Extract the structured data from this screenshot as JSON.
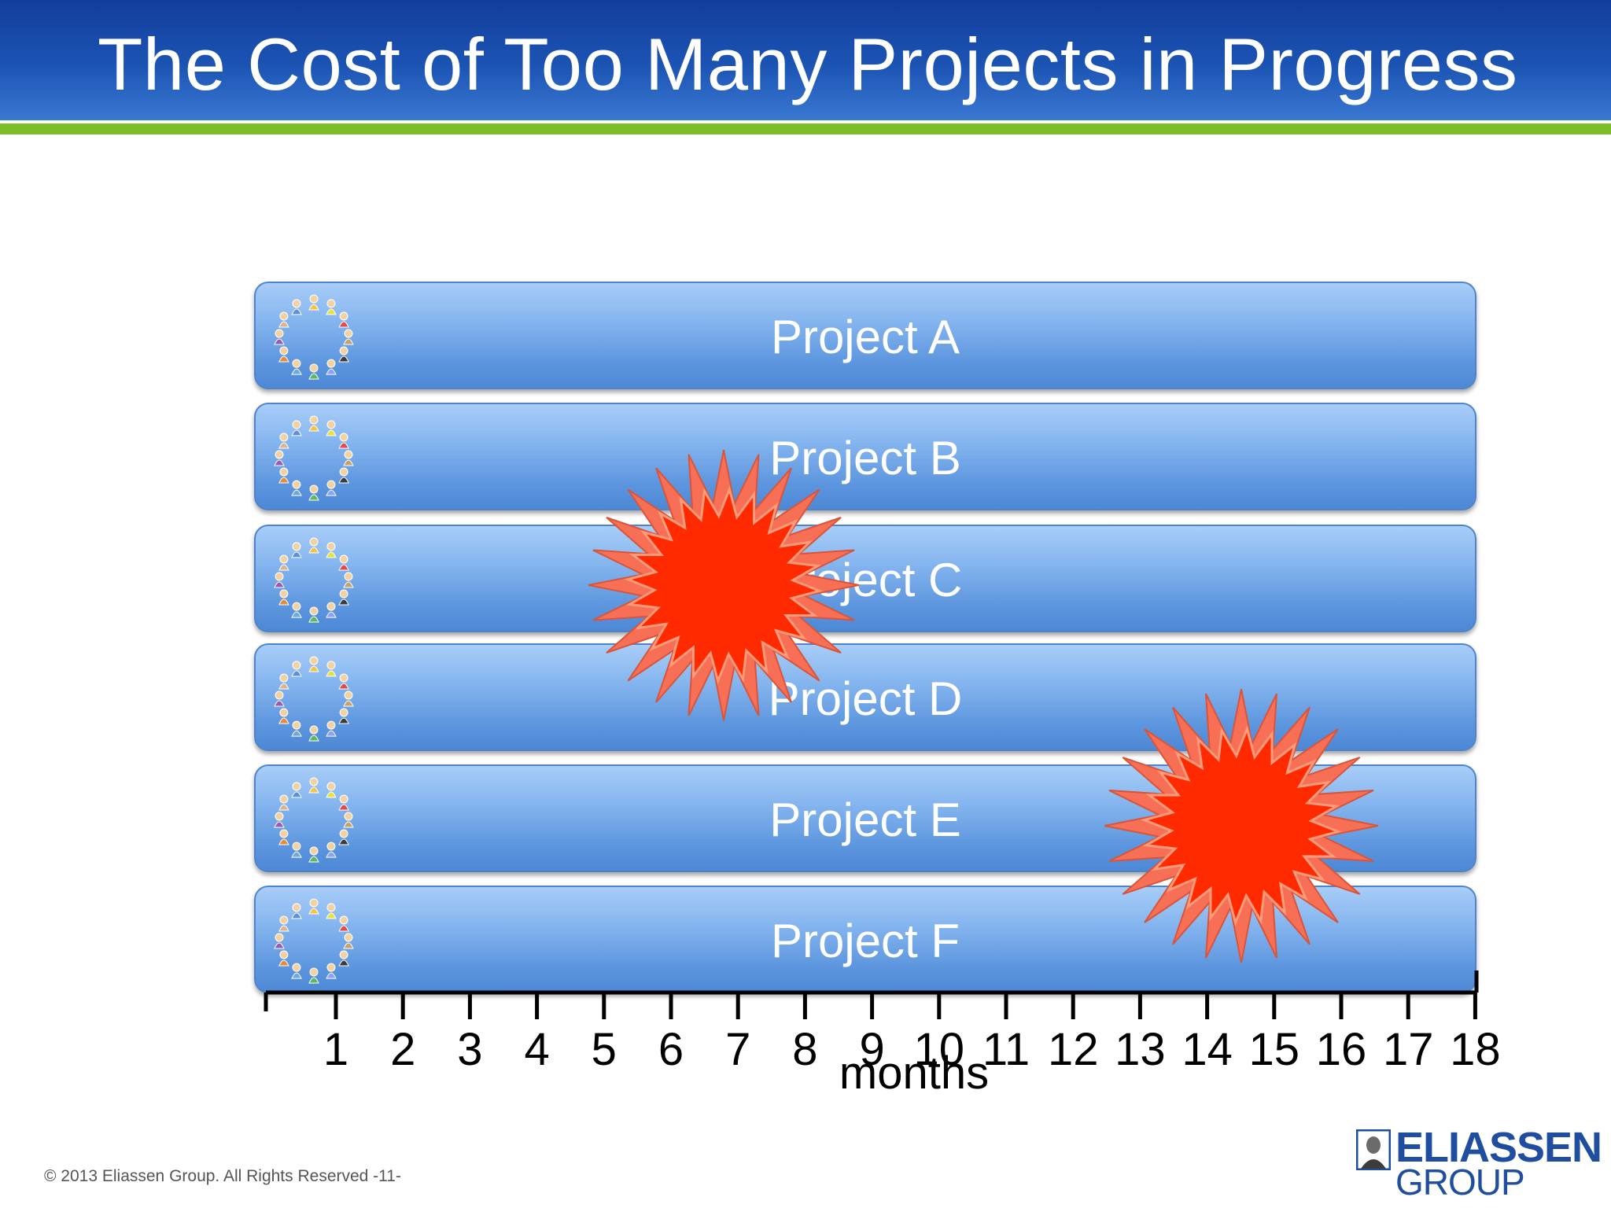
{
  "slide": {
    "title": "The Cost of Too Many Projects in Progress",
    "footer": "© 2013 Eliassen Group. All Rights Reserved -11-"
  },
  "projects": [
    {
      "label": "Project A"
    },
    {
      "label": "Project B"
    },
    {
      "label": "Project C"
    },
    {
      "label": "Project D"
    },
    {
      "label": "Project E"
    },
    {
      "label": "Project F"
    }
  ],
  "timeline": {
    "ticks": [
      "1",
      "2",
      "3",
      "4",
      "5",
      "6",
      "7",
      "8",
      "9",
      "10",
      "11",
      "12",
      "13",
      "14",
      "15",
      "16",
      "17",
      "18"
    ],
    "axis_label": "months"
  },
  "bursts": [
    {
      "name": "conflict-burst-upper"
    },
    {
      "name": "conflict-burst-lower"
    }
  ],
  "logo": {
    "line1": "ELIASSEN",
    "line2": "GROUP"
  },
  "colors": {
    "title_bar": "#1c54b4",
    "accent_green": "#7cbd28",
    "bar_blue": "#6fa5e8",
    "burst_outer": "#f76f55",
    "burst_inner": "#ff2a00",
    "logo_blue": "#1f4ea0"
  }
}
